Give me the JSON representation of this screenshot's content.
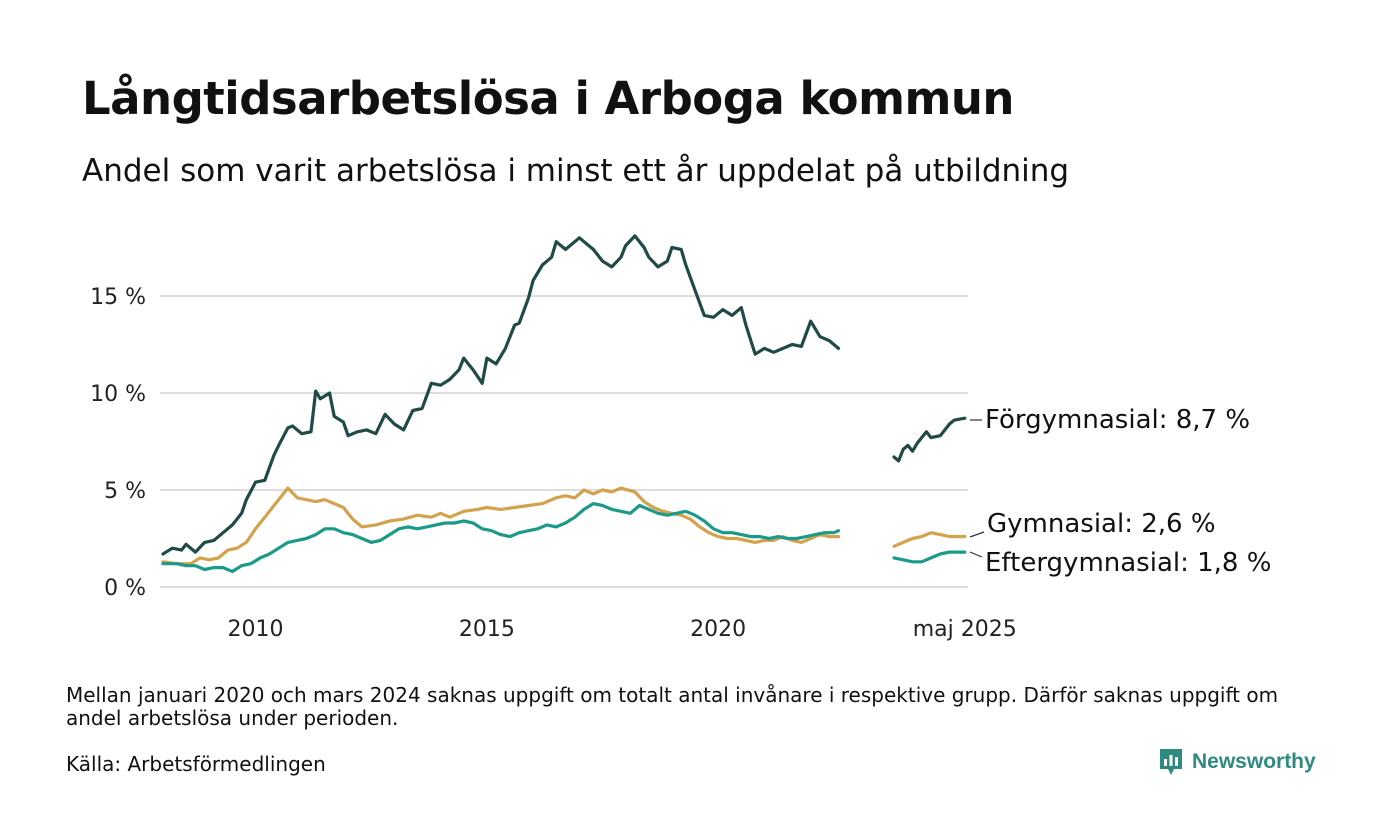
{
  "title": "Långtidsarbetslösa i Arboga kommun",
  "subtitle": "Andel som varit arbetslösa i minst ett år uppdelat på utbildning",
  "footnote": "Mellan januari 2020 och mars 2024 saknas uppgift om totalt antal invånare i respektive grupp. Därför saknas uppgift om andel arbetslösa under perioden.",
  "source": "Källa: Arbetsförmedlingen",
  "brand": "Newsworthy",
  "chart_data": {
    "type": "line",
    "title": "Långtidsarbetslösa i Arboga kommun",
    "subtitle": "Andel som varit arbetslösa i minst ett år uppdelat på utbildning",
    "xlabel": "",
    "ylabel": "",
    "y_ticks": [
      "0 %",
      "5 %",
      "10 %",
      "15 %"
    ],
    "y_tick_values": [
      0,
      5,
      10,
      15
    ],
    "x_ticks": [
      "2010",
      "2015",
      "2020",
      "maj 2025"
    ],
    "x_tick_values": [
      2010,
      2015,
      2020,
      2025.33
    ],
    "xlim": [
      2008.0,
      2025.4
    ],
    "ylim": [
      0,
      18.5
    ],
    "grid": "horizontal",
    "legend": "direct labels at right end of lines",
    "gap": "2021-2024 (no data)",
    "series": [
      {
        "name": "Förgymnasial",
        "end_label": "Förgymnasial: 8,7 %",
        "color": "#1f4a45",
        "segments": [
          [
            [
              2008.0,
              1.7
            ],
            [
              2008.2,
              2.0
            ],
            [
              2008.4,
              1.9
            ],
            [
              2008.5,
              2.2
            ],
            [
              2008.7,
              1.8
            ],
            [
              2008.9,
              2.3
            ],
            [
              2009.1,
              2.4
            ],
            [
              2009.3,
              2.8
            ],
            [
              2009.5,
              3.2
            ],
            [
              2009.7,
              3.8
            ],
            [
              2009.8,
              4.5
            ],
            [
              2010.0,
              5.4
            ],
            [
              2010.2,
              5.5
            ],
            [
              2010.4,
              6.8
            ],
            [
              2010.5,
              7.3
            ],
            [
              2010.7,
              8.2
            ],
            [
              2010.8,
              8.3
            ],
            [
              2011.0,
              7.9
            ],
            [
              2011.2,
              8.0
            ],
            [
              2011.3,
              10.1
            ],
            [
              2011.4,
              9.7
            ],
            [
              2011.6,
              10.0
            ],
            [
              2011.7,
              8.8
            ],
            [
              2011.9,
              8.5
            ],
            [
              2012.0,
              7.8
            ],
            [
              2012.2,
              8.0
            ],
            [
              2012.4,
              8.1
            ],
            [
              2012.6,
              7.9
            ],
            [
              2012.8,
              8.9
            ],
            [
              2013.0,
              8.4
            ],
            [
              2013.2,
              8.1
            ],
            [
              2013.4,
              9.1
            ],
            [
              2013.6,
              9.2
            ],
            [
              2013.8,
              10.5
            ],
            [
              2014.0,
              10.4
            ],
            [
              2014.2,
              10.7
            ],
            [
              2014.4,
              11.2
            ],
            [
              2014.5,
              11.8
            ],
            [
              2014.7,
              11.2
            ],
            [
              2014.9,
              10.5
            ],
            [
              2015.0,
              11.8
            ],
            [
              2015.2,
              11.5
            ],
            [
              2015.4,
              12.3
            ],
            [
              2015.6,
              13.5
            ],
            [
              2015.7,
              13.6
            ],
            [
              2015.9,
              14.9
            ],
            [
              2016.0,
              15.8
            ],
            [
              2016.2,
              16.6
            ],
            [
              2016.4,
              17.0
            ],
            [
              2016.5,
              17.8
            ],
            [
              2016.7,
              17.4
            ],
            [
              2016.8,
              17.6
            ],
            [
              2017.0,
              18.0
            ],
            [
              2017.1,
              17.8
            ],
            [
              2017.3,
              17.4
            ],
            [
              2017.5,
              16.8
            ],
            [
              2017.7,
              16.5
            ],
            [
              2017.9,
              17.0
            ],
            [
              2018.0,
              17.6
            ],
            [
              2018.2,
              18.1
            ],
            [
              2018.4,
              17.5
            ],
            [
              2018.5,
              17.0
            ],
            [
              2018.7,
              16.5
            ],
            [
              2018.9,
              16.8
            ],
            [
              2019.0,
              17.5
            ],
            [
              2019.2,
              17.4
            ],
            [
              2019.3,
              16.6
            ],
            [
              2019.5,
              15.3
            ],
            [
              2019.7,
              14.0
            ],
            [
              2019.9,
              13.9
            ],
            [
              2020.1,
              14.3
            ],
            [
              2020.3,
              14.0
            ],
            [
              2020.5,
              14.4
            ],
            [
              2020.6,
              13.5
            ],
            [
              2020.8,
              12.0
            ],
            [
              2021.0,
              12.3
            ],
            [
              2021.2,
              12.1
            ],
            [
              2021.4,
              12.3
            ],
            [
              2021.6,
              12.5
            ],
            [
              2021.8,
              12.4
            ],
            [
              2022.0,
              13.7
            ],
            [
              2022.2,
              12.9
            ],
            [
              2022.4,
              12.7
            ],
            [
              2022.6,
              12.3
            ]
          ],
          [
            [
              2023.8,
              6.7
            ],
            [
              2023.9,
              6.5
            ],
            [
              2024.0,
              7.1
            ],
            [
              2024.1,
              7.3
            ],
            [
              2024.2,
              7.0
            ],
            [
              2024.3,
              7.4
            ],
            [
              2024.4,
              7.7
            ],
            [
              2024.5,
              8.0
            ],
            [
              2024.6,
              7.7
            ],
            [
              2024.8,
              7.8
            ],
            [
              2024.9,
              8.1
            ],
            [
              2025.0,
              8.4
            ],
            [
              2025.1,
              8.6
            ],
            [
              2025.33,
              8.7
            ]
          ]
        ]
      },
      {
        "name": "Gymnasial",
        "end_label": "Gymnasial: 2,6 %",
        "color": "#d4a24c",
        "segments": [
          [
            [
              2008.0,
              1.3
            ],
            [
              2008.3,
              1.2
            ],
            [
              2008.6,
              1.2
            ],
            [
              2008.8,
              1.5
            ],
            [
              2009.0,
              1.4
            ],
            [
              2009.2,
              1.5
            ],
            [
              2009.4,
              1.9
            ],
            [
              2009.6,
              2.0
            ],
            [
              2009.8,
              2.3
            ],
            [
              2010.0,
              3.0
            ],
            [
              2010.2,
              3.6
            ],
            [
              2010.4,
              4.2
            ],
            [
              2010.6,
              4.8
            ],
            [
              2010.7,
              5.1
            ],
            [
              2010.9,
              4.6
            ],
            [
              2011.1,
              4.5
            ],
            [
              2011.3,
              4.4
            ],
            [
              2011.5,
              4.5
            ],
            [
              2011.7,
              4.3
            ],
            [
              2011.9,
              4.1
            ],
            [
              2012.1,
              3.5
            ],
            [
              2012.3,
              3.1
            ],
            [
              2012.6,
              3.2
            ],
            [
              2012.9,
              3.4
            ],
            [
              2013.2,
              3.5
            ],
            [
              2013.5,
              3.7
            ],
            [
              2013.8,
              3.6
            ],
            [
              2014.0,
              3.8
            ],
            [
              2014.2,
              3.6
            ],
            [
              2014.5,
              3.9
            ],
            [
              2014.8,
              4.0
            ],
            [
              2015.0,
              4.1
            ],
            [
              2015.3,
              4.0
            ],
            [
              2015.6,
              4.1
            ],
            [
              2015.9,
              4.2
            ],
            [
              2016.2,
              4.3
            ],
            [
              2016.5,
              4.6
            ],
            [
              2016.7,
              4.7
            ],
            [
              2016.9,
              4.6
            ],
            [
              2017.1,
              5.0
            ],
            [
              2017.3,
              4.8
            ],
            [
              2017.5,
              5.0
            ],
            [
              2017.7,
              4.9
            ],
            [
              2017.9,
              5.1
            ],
            [
              2018.2,
              4.9
            ],
            [
              2018.4,
              4.4
            ],
            [
              2018.6,
              4.1
            ],
            [
              2018.8,
              3.9
            ],
            [
              2019.0,
              3.8
            ],
            [
              2019.2,
              3.7
            ],
            [
              2019.4,
              3.5
            ],
            [
              2019.6,
              3.1
            ],
            [
              2019.8,
              2.8
            ],
            [
              2020.0,
              2.6
            ],
            [
              2020.2,
              2.5
            ],
            [
              2020.4,
              2.5
            ],
            [
              2020.6,
              2.4
            ],
            [
              2020.8,
              2.3
            ],
            [
              2021.0,
              2.4
            ],
            [
              2021.2,
              2.4
            ],
            [
              2021.4,
              2.6
            ],
            [
              2021.6,
              2.4
            ],
            [
              2021.8,
              2.3
            ],
            [
              2022.0,
              2.5
            ],
            [
              2022.2,
              2.7
            ],
            [
              2022.4,
              2.6
            ],
            [
              2022.6,
              2.6
            ]
          ],
          [
            [
              2023.8,
              2.1
            ],
            [
              2024.0,
              2.3
            ],
            [
              2024.2,
              2.5
            ],
            [
              2024.4,
              2.6
            ],
            [
              2024.6,
              2.8
            ],
            [
              2024.8,
              2.7
            ],
            [
              2025.0,
              2.6
            ],
            [
              2025.33,
              2.6
            ]
          ]
        ]
      },
      {
        "name": "Eftergymnasial",
        "end_label": "Eftergymnasial: 1,8 %",
        "color": "#1b9a8a",
        "segments": [
          [
            [
              2008.0,
              1.2
            ],
            [
              2008.3,
              1.2
            ],
            [
              2008.5,
              1.1
            ],
            [
              2008.7,
              1.1
            ],
            [
              2008.9,
              0.9
            ],
            [
              2009.1,
              1.0
            ],
            [
              2009.3,
              1.0
            ],
            [
              2009.5,
              0.8
            ],
            [
              2009.7,
              1.1
            ],
            [
              2009.9,
              1.2
            ],
            [
              2010.1,
              1.5
            ],
            [
              2010.3,
              1.7
            ],
            [
              2010.5,
              2.0
            ],
            [
              2010.7,
              2.3
            ],
            [
              2010.9,
              2.4
            ],
            [
              2011.1,
              2.5
            ],
            [
              2011.3,
              2.7
            ],
            [
              2011.5,
              3.0
            ],
            [
              2011.7,
              3.0
            ],
            [
              2011.9,
              2.8
            ],
            [
              2012.1,
              2.7
            ],
            [
              2012.3,
              2.5
            ],
            [
              2012.5,
              2.3
            ],
            [
              2012.7,
              2.4
            ],
            [
              2012.9,
              2.7
            ],
            [
              2013.1,
              3.0
            ],
            [
              2013.3,
              3.1
            ],
            [
              2013.5,
              3.0
            ],
            [
              2013.7,
              3.1
            ],
            [
              2013.9,
              3.2
            ],
            [
              2014.1,
              3.3
            ],
            [
              2014.3,
              3.3
            ],
            [
              2014.5,
              3.4
            ],
            [
              2014.7,
              3.3
            ],
            [
              2014.9,
              3.0
            ],
            [
              2015.1,
              2.9
            ],
            [
              2015.3,
              2.7
            ],
            [
              2015.5,
              2.6
            ],
            [
              2015.7,
              2.8
            ],
            [
              2015.9,
              2.9
            ],
            [
              2016.1,
              3.0
            ],
            [
              2016.3,
              3.2
            ],
            [
              2016.5,
              3.1
            ],
            [
              2016.7,
              3.3
            ],
            [
              2016.9,
              3.6
            ],
            [
              2017.1,
              4.0
            ],
            [
              2017.3,
              4.3
            ],
            [
              2017.5,
              4.2
            ],
            [
              2017.7,
              4.0
            ],
            [
              2017.9,
              3.9
            ],
            [
              2018.1,
              3.8
            ],
            [
              2018.3,
              4.2
            ],
            [
              2018.5,
              4.0
            ],
            [
              2018.7,
              3.8
            ],
            [
              2018.9,
              3.7
            ],
            [
              2019.1,
              3.8
            ],
            [
              2019.3,
              3.9
            ],
            [
              2019.5,
              3.7
            ],
            [
              2019.7,
              3.4
            ],
            [
              2019.9,
              3.0
            ],
            [
              2020.1,
              2.8
            ],
            [
              2020.3,
              2.8
            ],
            [
              2020.5,
              2.7
            ],
            [
              2020.7,
              2.6
            ],
            [
              2020.9,
              2.6
            ],
            [
              2021.1,
              2.5
            ],
            [
              2021.3,
              2.6
            ],
            [
              2021.5,
              2.5
            ],
            [
              2021.7,
              2.5
            ],
            [
              2021.9,
              2.6
            ],
            [
              2022.1,
              2.7
            ],
            [
              2022.3,
              2.8
            ],
            [
              2022.5,
              2.8
            ],
            [
              2022.6,
              2.9
            ]
          ],
          [
            [
              2023.8,
              1.5
            ],
            [
              2024.0,
              1.4
            ],
            [
              2024.2,
              1.3
            ],
            [
              2024.4,
              1.3
            ],
            [
              2024.6,
              1.5
            ],
            [
              2024.8,
              1.7
            ],
            [
              2025.0,
              1.8
            ],
            [
              2025.33,
              1.8
            ]
          ]
        ]
      }
    ]
  }
}
